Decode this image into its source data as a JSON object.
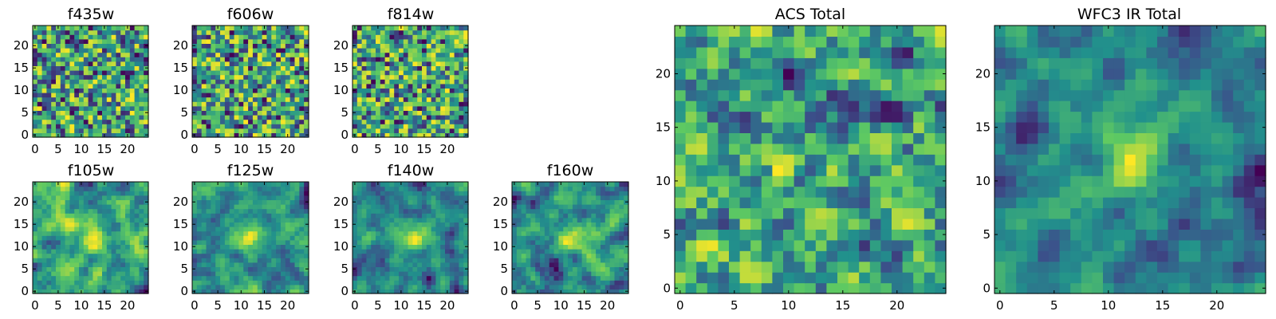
{
  "figure": {
    "colormap": "viridis",
    "colors": [
      "#440154",
      "#3b528b",
      "#21918c",
      "#5ec962",
      "#fde725"
    ]
  },
  "chart_data": [
    {
      "type": "heatmap",
      "title": "f435w",
      "xlim": [
        0,
        24
      ],
      "ylim": [
        0,
        24
      ],
      "xticks": [
        0,
        5,
        10,
        15,
        20
      ],
      "yticks": [
        0,
        5,
        10,
        15,
        20
      ],
      "grid": false,
      "smoothness": 0.0,
      "blob": [
        12,
        12,
        0.0
      ],
      "seed": 11
    },
    {
      "type": "heatmap",
      "title": "f606w",
      "xlim": [
        0,
        24
      ],
      "ylim": [
        0,
        24
      ],
      "xticks": [
        0,
        5,
        10,
        15,
        20
      ],
      "yticks": [
        0,
        5,
        10,
        15,
        20
      ],
      "grid": false,
      "smoothness": 0.0,
      "blob": [
        12,
        12,
        0.0
      ],
      "seed": 23
    },
    {
      "type": "heatmap",
      "title": "f814w",
      "xlim": [
        0,
        24
      ],
      "ylim": [
        0,
        24
      ],
      "xticks": [
        0,
        5,
        10,
        15,
        20
      ],
      "yticks": [
        0,
        5,
        10,
        15,
        20
      ],
      "grid": false,
      "smoothness": 0.0,
      "blob": [
        12,
        12,
        0.0
      ],
      "seed": 37
    },
    {
      "type": "heatmap",
      "title": "f105w",
      "xlim": [
        0,
        24
      ],
      "ylim": [
        0,
        24
      ],
      "xticks": [
        0,
        5,
        10,
        15,
        20
      ],
      "yticks": [
        0,
        5,
        10,
        15,
        20
      ],
      "grid": false,
      "smoothness": 0.5,
      "blob": [
        13,
        12,
        0.35
      ],
      "seed": 41
    },
    {
      "type": "heatmap",
      "title": "f125w",
      "xlim": [
        0,
        24
      ],
      "ylim": [
        0,
        24
      ],
      "xticks": [
        0,
        5,
        10,
        15,
        20
      ],
      "yticks": [
        0,
        5,
        10,
        15,
        20
      ],
      "grid": false,
      "smoothness": 0.6,
      "blob": [
        12,
        12,
        0.3
      ],
      "seed": 53
    },
    {
      "type": "heatmap",
      "title": "f140w",
      "xlim": [
        0,
        24
      ],
      "ylim": [
        0,
        24
      ],
      "xticks": [
        0,
        5,
        10,
        15,
        20
      ],
      "yticks": [
        0,
        5,
        10,
        15,
        20
      ],
      "grid": false,
      "smoothness": 0.6,
      "blob": [
        13,
        13,
        0.4
      ],
      "seed": 67
    },
    {
      "type": "heatmap",
      "title": "f160w",
      "xlim": [
        0,
        24
      ],
      "ylim": [
        0,
        24
      ],
      "xticks": [
        0,
        5,
        10,
        15,
        20
      ],
      "yticks": [
        0,
        5,
        10,
        15,
        20
      ],
      "grid": false,
      "smoothness": 0.6,
      "blob": [
        13,
        12,
        0.45
      ],
      "seed": 79
    },
    {
      "type": "heatmap",
      "title": "ACS Total",
      "xlim": [
        0,
        24
      ],
      "ylim": [
        0,
        24
      ],
      "xticks": [
        0,
        5,
        10,
        15,
        20
      ],
      "yticks": [
        0,
        5,
        10,
        15,
        20
      ],
      "grid": false,
      "smoothness": 0.25,
      "blob": [
        12,
        12,
        0.0
      ],
      "seed": 97
    },
    {
      "type": "heatmap",
      "title": "WFC3 IR Total",
      "xlim": [
        0,
        24
      ],
      "ylim": [
        0,
        24
      ],
      "xticks": [
        0,
        5,
        10,
        15,
        20
      ],
      "yticks": [
        0,
        5,
        10,
        15,
        20
      ],
      "grid": false,
      "smoothness": 0.7,
      "blob": [
        12,
        12,
        0.55
      ],
      "seed": 113
    }
  ]
}
